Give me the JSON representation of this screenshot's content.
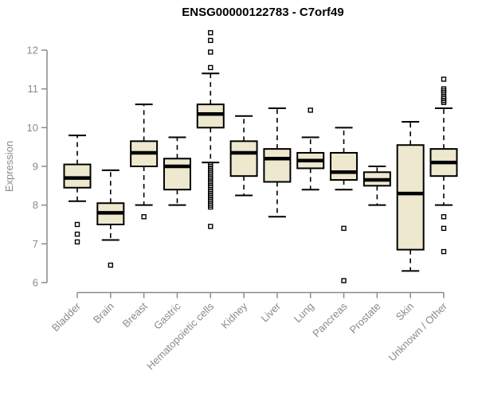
{
  "page": {
    "background": "#ffffff"
  },
  "chart_data": {
    "type": "boxplot",
    "title": "ENSG00000122783 - C7orf49",
    "ylabel": "Expression",
    "xlabel": "",
    "ylim": [
      5.9,
      12.5
    ],
    "yticks": [
      6,
      7,
      8,
      9,
      10,
      11,
      12
    ],
    "grid": false,
    "legend": false,
    "categories": [
      "Bladder",
      "Brain",
      "Breast",
      "Gastric",
      "Hematopoietic cells",
      "Kidney",
      "Liver",
      "Lung",
      "Pancreas",
      "Prostate",
      "Skin",
      "Unknown / Other"
    ],
    "series": [
      {
        "name": "Bladder",
        "whisker_low": 8.1,
        "q1": 8.45,
        "median": 8.7,
        "q3": 9.05,
        "whisker_high": 9.8,
        "outliers": [
          7.5,
          7.25,
          7.05
        ]
      },
      {
        "name": "Brain",
        "whisker_low": 7.1,
        "q1": 7.5,
        "median": 7.8,
        "q3": 8.05,
        "whisker_high": 8.9,
        "outliers": [
          6.45
        ]
      },
      {
        "name": "Breast",
        "whisker_low": 8.0,
        "q1": 9.0,
        "median": 9.35,
        "q3": 9.65,
        "whisker_high": 10.6,
        "outliers": [
          7.7
        ]
      },
      {
        "name": "Gastric",
        "whisker_low": 8.0,
        "q1": 8.4,
        "median": 9.0,
        "q3": 9.2,
        "whisker_high": 9.75,
        "outliers": []
      },
      {
        "name": "Hematopoietic cells",
        "whisker_low": 9.1,
        "q1": 10.0,
        "median": 10.35,
        "q3": 10.6,
        "whisker_high": 11.4,
        "outliers": [
          12.45,
          12.25,
          11.95,
          11.55,
          9.05,
          9.0,
          8.95,
          8.9,
          8.85,
          8.8,
          8.75,
          8.7,
          8.65,
          8.6,
          8.55,
          8.5,
          8.45,
          8.4,
          8.35,
          8.3,
          8.25,
          8.2,
          8.15,
          8.1,
          8.05,
          8.0,
          7.95,
          7.45
        ]
      },
      {
        "name": "Kidney",
        "whisker_low": 8.25,
        "q1": 8.75,
        "median": 9.35,
        "q3": 9.65,
        "whisker_high": 10.3,
        "outliers": []
      },
      {
        "name": "Liver",
        "whisker_low": 7.7,
        "q1": 8.6,
        "median": 9.2,
        "q3": 9.45,
        "whisker_high": 10.5,
        "outliers": []
      },
      {
        "name": "Lung",
        "whisker_low": 8.4,
        "q1": 8.95,
        "median": 9.15,
        "q3": 9.35,
        "whisker_high": 9.75,
        "outliers": [
          10.45
        ]
      },
      {
        "name": "Pancreas",
        "whisker_low": 8.4,
        "q1": 8.65,
        "median": 8.85,
        "q3": 9.35,
        "whisker_high": 10.0,
        "outliers": [
          7.4,
          6.05
        ]
      },
      {
        "name": "Prostate",
        "whisker_low": 8.0,
        "q1": 8.5,
        "median": 8.65,
        "q3": 8.85,
        "whisker_high": 9.0,
        "outliers": []
      },
      {
        "name": "Skin",
        "whisker_low": 6.3,
        "q1": 6.85,
        "median": 8.3,
        "q3": 9.55,
        "whisker_high": 10.15,
        "outliers": []
      },
      {
        "name": "Unknown / Other",
        "whisker_low": 8.0,
        "q1": 8.75,
        "median": 9.1,
        "q3": 9.45,
        "whisker_high": 10.5,
        "outliers": [
          11.25,
          11.0,
          10.95,
          10.9,
          10.8,
          10.75,
          10.7,
          10.65,
          7.7,
          7.4,
          6.8
        ]
      }
    ],
    "colors": {
      "box_fill": "#ede8ce",
      "box_border": "#000000",
      "median": "#000000",
      "axis": "#8a8a8a",
      "tick_label": "#8a8a8a",
      "title": "#000000"
    }
  }
}
